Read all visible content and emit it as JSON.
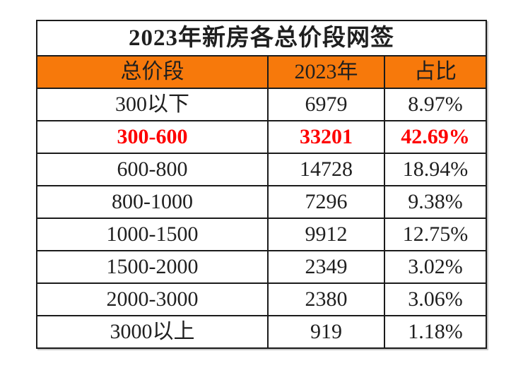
{
  "table": {
    "title": "2023年新房各总价段网签",
    "headers": {
      "price_range": "总价段",
      "year": "2023年",
      "share": "占比"
    },
    "rows": [
      {
        "range": "300以下",
        "count": "6979",
        "share": "8.97%"
      },
      {
        "range": "300-600",
        "count": "33201",
        "share": "42.69%"
      },
      {
        "range": "600-800",
        "count": "14728",
        "share": "18.94%"
      },
      {
        "range": "800-1000",
        "count": "7296",
        "share": "9.38%"
      },
      {
        "range": "1000-1500",
        "count": "9912",
        "share": "12.75%"
      },
      {
        "range": "1500-2000",
        "count": "2349",
        "share": "3.02%"
      },
      {
        "range": "2000-3000",
        "count": "2380",
        "share": "3.06%"
      },
      {
        "range": "3000以上",
        "count": "919",
        "share": "1.18%"
      }
    ],
    "highlighted_row": "300-600"
  },
  "colors": {
    "header_background": "#F7790B",
    "highlight_text": "#FE0000",
    "border": "#1B1B1B",
    "text": "#1F1F1F",
    "page_background": "#FFFFFF"
  },
  "chart_data": {
    "type": "table",
    "title": "2023年新房各总价段网签",
    "columns": [
      "总价段",
      "2023年",
      "占比"
    ],
    "rows": [
      [
        "300以下",
        6979,
        "8.97%"
      ],
      [
        "300-600",
        33201,
        "42.69%"
      ],
      [
        "600-800",
        14728,
        "18.94%"
      ],
      [
        "800-1000",
        7296,
        "9.38%"
      ],
      [
        "1000-1500",
        9912,
        "12.75%"
      ],
      [
        "1500-2000",
        2349,
        "3.02%"
      ],
      [
        "2000-3000",
        2380,
        "3.06%"
      ],
      [
        "3000以上",
        919,
        "1.18%"
      ]
    ],
    "highlight_row": "300-600"
  }
}
